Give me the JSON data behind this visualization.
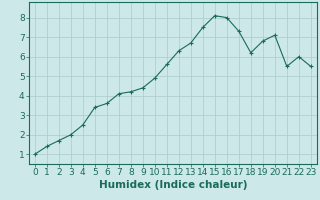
{
  "x": [
    0,
    1,
    2,
    3,
    4,
    5,
    6,
    7,
    8,
    9,
    10,
    11,
    12,
    13,
    14,
    15,
    16,
    17,
    18,
    19,
    20,
    21,
    22,
    23
  ],
  "y": [
    1.0,
    1.4,
    1.7,
    2.0,
    2.5,
    3.4,
    3.6,
    4.1,
    4.2,
    4.4,
    4.9,
    5.6,
    6.3,
    6.7,
    7.5,
    8.1,
    8.0,
    7.3,
    6.2,
    6.8,
    7.1,
    5.5,
    6.0,
    5.5
  ],
  "line_color": "#1a6b5a",
  "marker": "+",
  "marker_size": 3,
  "bg_color": "#cce8e8",
  "grid_color": "#aacccc",
  "xlabel": "Humidex (Indice chaleur)",
  "xlim": [
    -0.5,
    23.5
  ],
  "ylim": [
    0.5,
    8.8
  ],
  "xticks": [
    0,
    1,
    2,
    3,
    4,
    5,
    6,
    7,
    8,
    9,
    10,
    11,
    12,
    13,
    14,
    15,
    16,
    17,
    18,
    19,
    20,
    21,
    22,
    23
  ],
  "yticks": [
    1,
    2,
    3,
    4,
    5,
    6,
    7,
    8
  ],
  "axis_fontsize": 6.5,
  "xlabel_fontsize": 7.5
}
